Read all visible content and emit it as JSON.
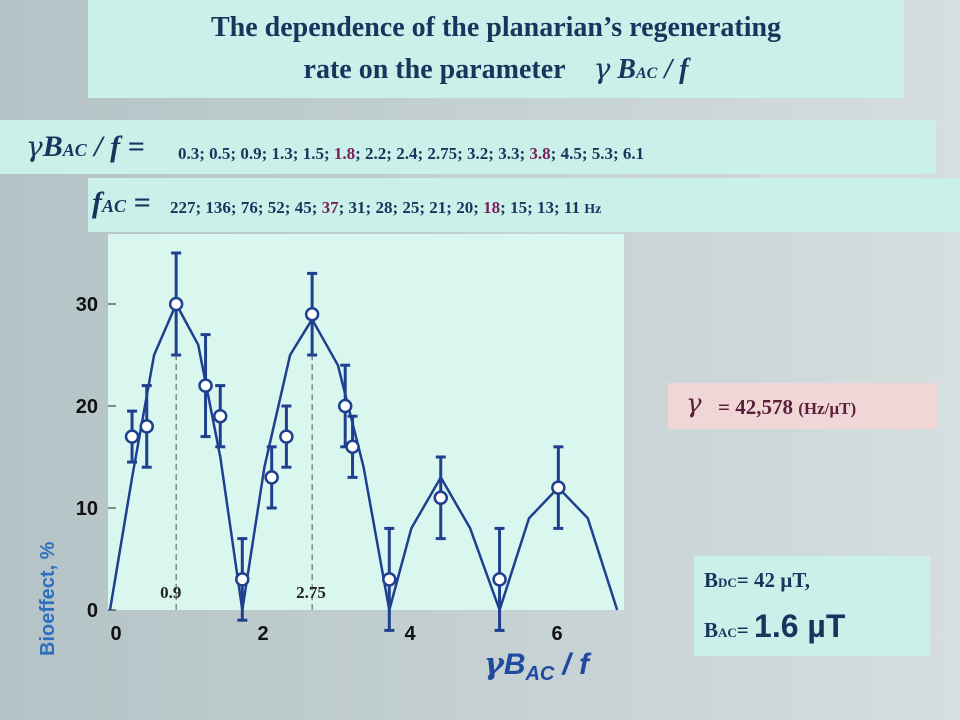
{
  "title": {
    "line1": "The dependence of the planarian’s regenerating",
    "line2_text": "rate on the parameter",
    "line2_symbol": "γ",
    "line2_param": "B",
    "line2_sub": "AC",
    "line2_tail": "/ f"
  },
  "param_row": {
    "symbol": "γ",
    "B": "B",
    "sub": "AC",
    "tail": "/ f =",
    "values": [
      "0.3",
      "0.5",
      "0.9",
      "1.3",
      "1.5",
      "1.8",
      "2.2",
      "2.4",
      "2.75",
      "3.2",
      "3.3",
      "3.8",
      "4.5",
      "5.3",
      "6.1"
    ],
    "highlight_color": "#7a1f5a",
    "text_color": "#17365d"
  },
  "freq_row": {
    "f": "f",
    "sub": "AC",
    "eq": "=",
    "values": [
      "227",
      "136",
      "76",
      "52",
      "45",
      "37",
      "31",
      "28",
      "25",
      "21",
      "20",
      "18",
      "15",
      "13",
      "11"
    ],
    "unit": "Hz"
  },
  "gamma_box": {
    "symbol": "γ",
    "value": "= 42,578",
    "unit": "(Hz/µT)"
  },
  "fields_box": {
    "bdc_B": "B",
    "bdc_sub": "DC",
    "bdc_text": "= 42 µT,",
    "bac_B": "B",
    "bac_sub": "AC",
    "bac_eq": "=",
    "bac_value": "1.6 µT"
  },
  "chart_data": {
    "type": "scatter",
    "title": "",
    "xlabel_symbol": "γ",
    "xlabel_B": "B",
    "xlabel_sub": "AC",
    "xlabel_tail": "/ f",
    "ylabel": "Bioeffect, %",
    "xlim": [
      0,
      7.1
    ],
    "ylim": [
      0,
      36
    ],
    "xticks": [
      "0",
      "2",
      "4",
      "6"
    ],
    "yticks": [
      "0",
      "10",
      "20",
      "30"
    ],
    "grid": false,
    "points": [
      {
        "x": 0.3,
        "y": 17,
        "err": 2.5
      },
      {
        "x": 0.5,
        "y": 18,
        "err": 4
      },
      {
        "x": 0.9,
        "y": 30,
        "err": 5
      },
      {
        "x": 1.3,
        "y": 22,
        "err": 5
      },
      {
        "x": 1.5,
        "y": 19,
        "err": 3
      },
      {
        "x": 1.8,
        "y": 3,
        "err": 4
      },
      {
        "x": 2.2,
        "y": 13,
        "err": 3
      },
      {
        "x": 2.4,
        "y": 17,
        "err": 3
      },
      {
        "x": 2.75,
        "y": 29,
        "err": 4
      },
      {
        "x": 3.2,
        "y": 20,
        "err": 4
      },
      {
        "x": 3.3,
        "y": 16,
        "err": 3
      },
      {
        "x": 3.8,
        "y": 3,
        "err": 5
      },
      {
        "x": 4.5,
        "y": 11,
        "err": 4
      },
      {
        "x": 5.3,
        "y": 3,
        "err": 5
      },
      {
        "x": 6.1,
        "y": 12,
        "err": 4
      }
    ],
    "curve": [
      {
        "x": 0,
        "y": 0
      },
      {
        "x": 0.3,
        "y": 13
      },
      {
        "x": 0.6,
        "y": 25
      },
      {
        "x": 0.9,
        "y": 30
      },
      {
        "x": 1.2,
        "y": 26
      },
      {
        "x": 1.5,
        "y": 15
      },
      {
        "x": 1.8,
        "y": 0
      },
      {
        "x": 2.1,
        "y": 14
      },
      {
        "x": 2.45,
        "y": 25
      },
      {
        "x": 2.75,
        "y": 28.5
      },
      {
        "x": 3.1,
        "y": 24
      },
      {
        "x": 3.45,
        "y": 14
      },
      {
        "x": 3.8,
        "y": 0
      },
      {
        "x": 4.1,
        "y": 8
      },
      {
        "x": 4.5,
        "y": 13
      },
      {
        "x": 4.9,
        "y": 8
      },
      {
        "x": 5.3,
        "y": 0
      },
      {
        "x": 5.7,
        "y": 9
      },
      {
        "x": 6.1,
        "y": 12
      },
      {
        "x": 6.5,
        "y": 9
      },
      {
        "x": 6.9,
        "y": 0
      }
    ],
    "markers": [
      {
        "x": 0.9,
        "label": "0.9"
      },
      {
        "x": 2.75,
        "label": "2.75"
      }
    ],
    "colors": {
      "line": "#1f3f8f",
      "axis_text": "#1f4aa0",
      "ylabel": "#2f6fc0",
      "background": "#d9f7ef"
    }
  }
}
